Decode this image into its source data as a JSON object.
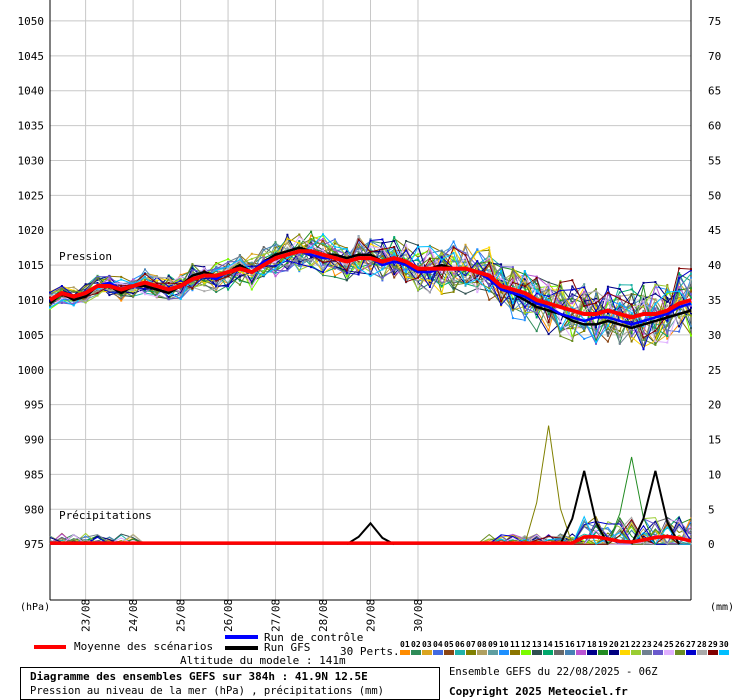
{
  "chart_data": {
    "type": "line",
    "title": "Diagramme des ensembles GEFS sur 384h : 41.9N 12.5E",
    "subtitle": "Pression au niveau de la mer (hPa) , précipitations (mm)",
    "left_axis_unit": "(hPa)",
    "right_axis_unit": "(mm)",
    "pressure_label": "Pression",
    "precip_label": "Précipitations",
    "ylim_left": [
      967,
      1053
    ],
    "ylim_right": [
      -8,
      78
    ],
    "pressure_ticks": [
      975,
      980,
      985,
      990,
      995,
      1000,
      1005,
      1010,
      1015,
      1020,
      1025,
      1030,
      1035,
      1040,
      1045,
      1050
    ],
    "precip_ticks": [
      0,
      5,
      10,
      15,
      20,
      25,
      30,
      35,
      40,
      45,
      50,
      55,
      60,
      65,
      70,
      75
    ],
    "x_date_labels": [
      "23/08",
      "24/08",
      "25/08",
      "26/08",
      "27/08",
      "28/08",
      "29/08",
      "30/08"
    ],
    "x_start_label": "22/08 06Z",
    "step_hours": 6,
    "mean_pressure": [
      1010,
      1011,
      1010.5,
      1011,
      1012,
      1012,
      1011.5,
      1012,
      1012.5,
      1012,
      1011.5,
      1012,
      1013,
      1013.5,
      1013.5,
      1014,
      1014.5,
      1014,
      1015,
      1016,
      1016.5,
      1017,
      1017,
      1016.5,
      1016,
      1015.5,
      1016,
      1016,
      1015.5,
      1016,
      1015.5,
      1014.5,
      1014.5,
      1014.5,
      1014.5,
      1014.5,
      1014,
      1013.5,
      1012,
      1011.5,
      1011,
      1010,
      1009.5,
      1009,
      1008.5,
      1008,
      1008,
      1008.5,
      1008,
      1007.5,
      1008,
      1008,
      1008.5,
      1009.5,
      1010
    ],
    "gfs_pressure": [
      1009.5,
      1011,
      1010,
      1010.5,
      1012,
      1012,
      1011,
      1012,
      1012,
      1011.5,
      1011,
      1012,
      1013.5,
      1014,
      1013.5,
      1014,
      1015,
      1014,
      1015.5,
      1016.5,
      1017,
      1017.5,
      1017,
      1016.5,
      1016.5,
      1016,
      1016.5,
      1016.5,
      1015.5,
      1016,
      1015,
      1014,
      1014.5,
      1015,
      1014.5,
      1014.5,
      1014,
      1013,
      1011.5,
      1011,
      1010,
      1009,
      1008.5,
      1008,
      1007,
      1006.5,
      1006.5,
      1007,
      1006.5,
      1006,
      1006.5,
      1007,
      1007.5,
      1008,
      1008.5
    ],
    "control_pressure": [
      1010,
      1011,
      1010.5,
      1011,
      1012,
      1012.5,
      1011.5,
      1012,
      1012.5,
      1012,
      1011.5,
      1012,
      1013,
      1013.5,
      1013,
      1014,
      1014.5,
      1014,
      1015.5,
      1016,
      1016.5,
      1017,
      1016.5,
      1016,
      1016,
      1015.5,
      1016,
      1016,
      1015,
      1015.5,
      1015,
      1014,
      1014,
      1014.5,
      1014.5,
      1014.5,
      1014,
      1013,
      1011.5,
      1011,
      1010.5,
      1009.5,
      1009,
      1008,
      1007.5,
      1007,
      1007.5,
      1007.5,
      1007,
      1006.5,
      1007,
      1007.5,
      1008,
      1009,
      1009.5
    ],
    "precip_peaks_mm": [
      {
        "member": "GFS",
        "time_index": 27,
        "mm": 3
      },
      {
        "member": "07",
        "time_index": 42,
        "mm": 17
      },
      {
        "member": "GFS",
        "time_index": 45,
        "mm": 10.5
      },
      {
        "member": "19",
        "time_index": 49,
        "mm": 12.5
      },
      {
        "member": "GFS",
        "time_index": 51,
        "mm": 10.5
      }
    ],
    "legend": {
      "mean_label": "Moyenne des scénarios",
      "control_label": "Run de contrôle",
      "gfs_label": "Run GFS",
      "perts_label": "30 Perts.",
      "altitude_label": "Altitude du modele : 141m",
      "members": [
        "01",
        "02",
        "03",
        "04",
        "05",
        "06",
        "07",
        "08",
        "09",
        "10",
        "11",
        "12",
        "13",
        "14",
        "15",
        "16",
        "17",
        "18",
        "19",
        "20",
        "21",
        "22",
        "23",
        "24",
        "25",
        "26",
        "27",
        "28",
        "29",
        "30"
      ]
    },
    "colors": {
      "mean": "#ff0000",
      "control": "#0000ff",
      "gfs": "#000000",
      "members": [
        "#ff8c00",
        "#2e8b57",
        "#daa520",
        "#4169e1",
        "#8b4513",
        "#20b2aa",
        "#808000",
        "#b0a060",
        "#5f9ea0",
        "#1e90ff",
        "#8b7500",
        "#7cfc00",
        "#2f4f4f",
        "#00a86b",
        "#696969",
        "#4682b4",
        "#ba55d3",
        "#00008b",
        "#228b22",
        "#000080",
        "#ffd700",
        "#9acd32",
        "#708090",
        "#6a5acd",
        "#e0b0ff",
        "#6b8e23",
        "#0000cd",
        "#a9a9a9",
        "#800000",
        "#00bfff"
      ]
    }
  },
  "footer": {
    "ensemble_line": "Ensemble GEFS du 22/08/2025 - 06Z",
    "copyright": "Copyright 2025 Meteociel.fr"
  }
}
